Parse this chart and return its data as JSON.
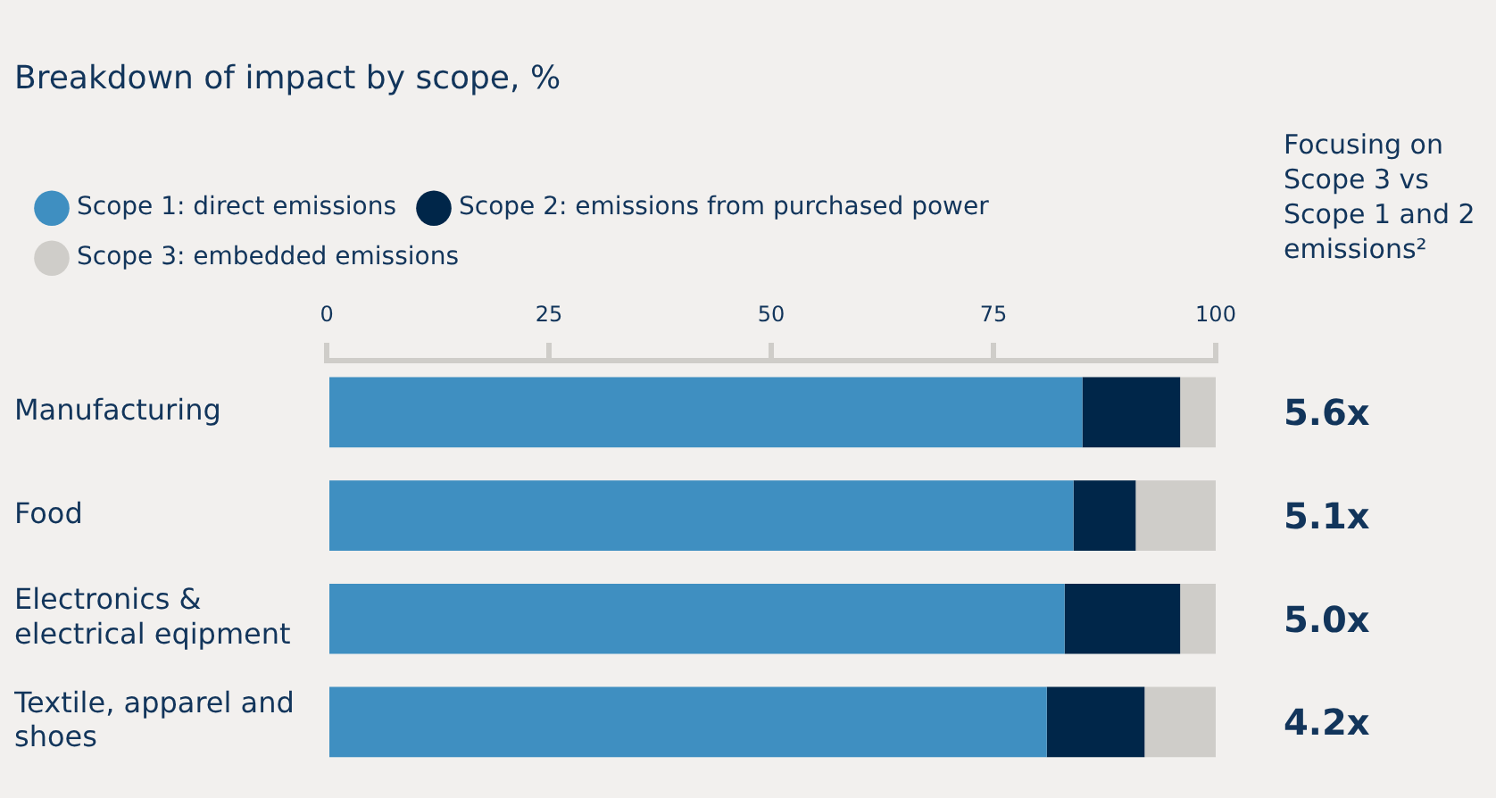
{
  "chart_data": {
    "type": "bar",
    "orientation": "horizontal",
    "stacked": true,
    "title": "Breakdown of impact by scope, %",
    "categories": [
      "Manufacturing",
      "Food",
      "Electronics & electrical eqipment",
      "Textile, apparel and shoes"
    ],
    "series": [
      {
        "name": "Scope 1: direct emissions",
        "color": "#3f8fc1",
        "values": [
          85,
          84,
          83,
          81
        ]
      },
      {
        "name": "Scope 2: emissions from purchased power",
        "color": "#002649",
        "values": [
          11,
          7,
          13,
          11
        ]
      },
      {
        "name": "Scope 3: embedded emissions",
        "color": "#cfcdc9",
        "values": [
          4,
          9,
          4,
          8
        ]
      }
    ],
    "xlim": [
      0,
      100
    ],
    "xticks": [
      0,
      25,
      50,
      75,
      100
    ],
    "grid": false,
    "legend": "top left",
    "annotations": [
      "Focusing on Scope 3 vs Scope 1 and 2 emissions²",
      "5.6x",
      "5.1x",
      "5.0x",
      "4.2x"
    ]
  }
}
